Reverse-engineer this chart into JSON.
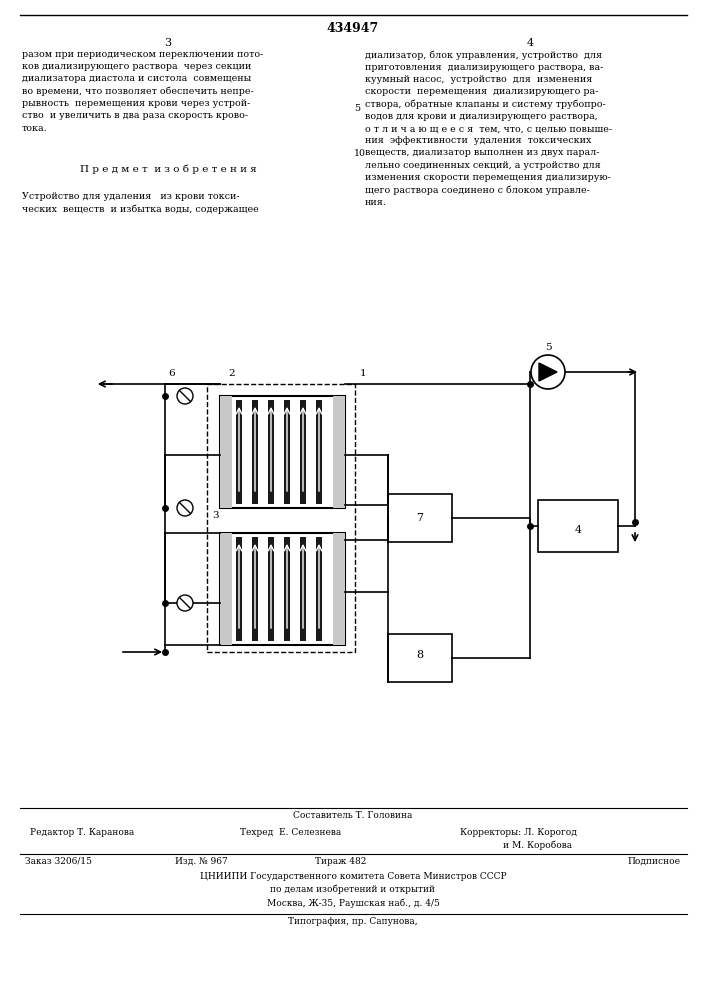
{
  "page_number": "434947",
  "col_left": "3",
  "col_right": "4",
  "text_left_top": "разом при периодическом переключении пото-\nков диализирующего раствора  через секции\nдиализатора диастола и систола  совмещены\nво времени, что позволяет обеспечить непре-\nрывность  перемещения крови через устрой-\nство  и увеличить в два раза скорость крово-\nтока.",
  "section_title": "П р е д м е т  и з о б р е т е н и я",
  "text_left_bottom": "Устройство для удаления   из крови токси-\nческих  веществ  и избытка воды, содержащее",
  "text_right_top": "диализатор, блок управления, устройство  для\nприготовления  диализирующего раствора, ва-\nкуумный насос,  устройство  для  изменения\nскорости  перемещения  диализирующего ра-\nствора, обратные клапаны и систему трубопро-\nводов для крови и диализирующего раствора,\nо т л и ч а ю щ е е с я  тем, что, с целью повыше-\nния  эффективности  удаления  токсических\nвеществ, диализатор выполнен из двух парал-\nлельно соединенных секций, а устройство для\nизменения скорости перемещения диализирую-\nщего раствора соединено с блоком управле-\nния.",
  "line_number_5": "5",
  "line_number_10": "10",
  "footer_compositor": "Составитель Т. Головина",
  "footer_editor": "Редактор Т. Каранова",
  "footer_techred": "Техред  Е. Селезнева",
  "footer_correctors_1": "Корректоры: Л. Корогод",
  "footer_correctors_2": "               и М. Коробова",
  "footer_order": "Заказ 3206/15",
  "footer_edition": "Изд. № 967",
  "footer_print": "Тираж 482",
  "footer_subscription": "Подписное",
  "footer_org1": "ЦНИИПИ Государственного комитета Совета Министров СССР",
  "footer_org2": "по делам изобретений и открытий",
  "footer_address": "Москва, Ж-35, Раушская наб., д. 4/5",
  "footer_print2": "Типография, пр. Сапунова,",
  "bg_color": "#ffffff",
  "text_color": "#000000"
}
